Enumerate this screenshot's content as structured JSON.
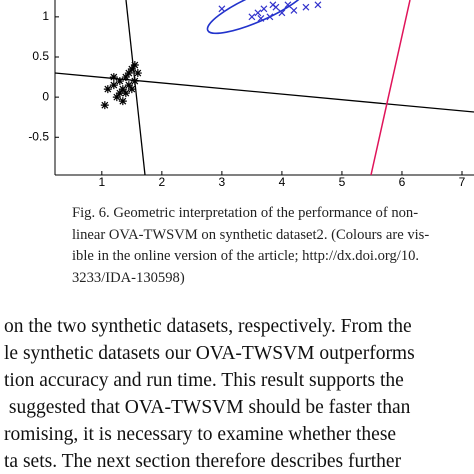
{
  "chart_data": {
    "type": "scatter",
    "xlim": [
      0.22,
      7.2
    ],
    "ylim": [
      -0.97,
      1.21
    ],
    "xticks": [
      1,
      2,
      3,
      4,
      5,
      6,
      7
    ],
    "yticks": [
      1,
      0.5,
      0,
      -0.5
    ],
    "series": [
      {
        "color": "#000000",
        "marker": "star",
        "x": [
          1.1,
          1.2,
          1.3,
          1.35,
          1.4,
          1.45,
          1.5,
          1.3,
          1.25,
          1.45,
          1.55,
          1.6,
          1.4,
          1.5,
          1.35,
          1.55,
          1.2,
          1.05
        ],
        "y": [
          0.1,
          0.15,
          0.2,
          0.1,
          0.25,
          0.3,
          0.35,
          0.05,
          0.0,
          0.15,
          0.2,
          0.3,
          0.05,
          0.1,
          -0.05,
          0.4,
          0.25,
          -0.1
        ]
      },
      {
        "color": "#3333cc",
        "marker": "x",
        "x": [
          3.0,
          3.5,
          3.6,
          3.7,
          3.8,
          3.9,
          4.0,
          4.1,
          3.85,
          4.2,
          4.4,
          4.6,
          3.65
        ],
        "y": [
          1.1,
          1.0,
          1.05,
          1.1,
          1.0,
          1.12,
          1.05,
          1.15,
          1.15,
          1.08,
          1.12,
          1.15,
          0.98
        ]
      }
    ]
  },
  "caption": [
    "Fig. 6. Geometric interpretation of the performance of non-",
    "linear OVA-TWSVM on synthetic dataset2. (Colours are vis-",
    "ible in the online version of the article; http://dx.doi.org/10.",
    "3233/IDA-130598)"
  ],
  "body_lines": [
    "on the two synthetic datasets, respectively. From the",
    "le synthetic datasets our OVA-TWSVM outperforms",
    "tion accuracy and run time. This result supports the",
    " suggested that OVA-TWSVM should be faster than",
    "romising, it is necessary to examine whether these",
    "ta sets. The next section therefore describes further"
  ]
}
